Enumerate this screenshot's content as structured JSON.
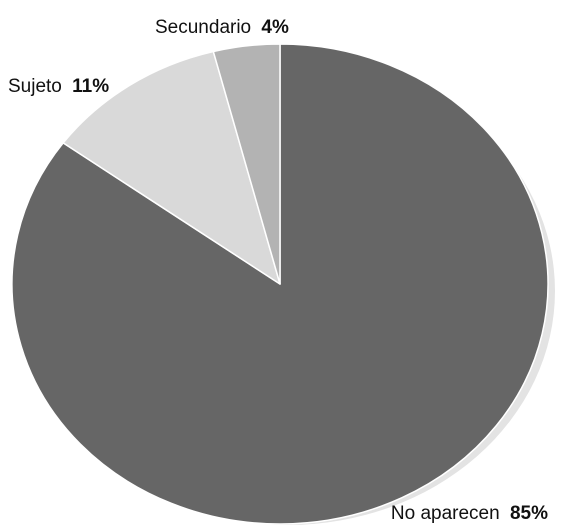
{
  "chart_data": {
    "type": "pie",
    "title": "",
    "legend": "none",
    "slices": [
      {
        "label": "No aparecen",
        "value": 85,
        "value_label": "85%",
        "color": "#666666"
      },
      {
        "label": "Sujeto",
        "value": 11,
        "value_label": "11%",
        "color": "#d9d9d9"
      },
      {
        "label": "Secundario",
        "value": 4,
        "value_label": "4%",
        "color": "#b3b3b3"
      }
    ],
    "shadow_color": "#e3e3e3",
    "slice_border_color": "#ffffff"
  }
}
